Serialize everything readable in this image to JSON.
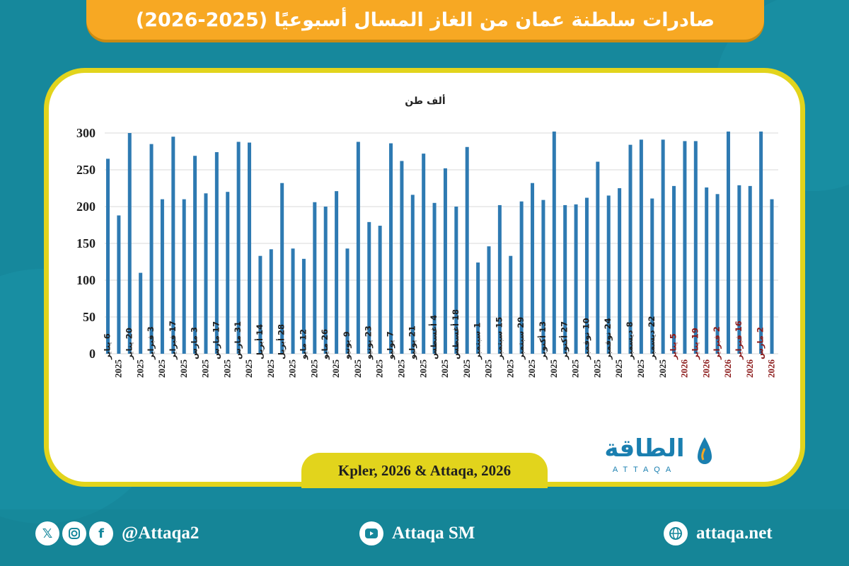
{
  "title": "صادرات سلطنة عمان من الغاز المسال أسبوعيًا (2025-2026)",
  "source": "Kpler, 2026 & Attaqa, 2026",
  "logo": {
    "arabic": "الطاقة",
    "english": "ATTAQA"
  },
  "footer": {
    "twitter_icon": "x-icon",
    "instagram_icon": "instagram-icon",
    "facebook_icon": "facebook-icon",
    "handle": "@Attaqa2",
    "youtube_icon": "youtube-icon",
    "youtube": "Attaqa SM",
    "web_icon": "globe-icon",
    "website": "attaqa.net"
  },
  "colors": {
    "background": "#16889c",
    "banner": "#f7a823",
    "frame": "#e2d41c",
    "bar": "#2e7ab2",
    "label_2025": "#1f1f1f",
    "label_2026": "#8b1a1a"
  },
  "chart_data": {
    "type": "bar",
    "ylabel": "ألف طن",
    "ylim": [
      0,
      300
    ],
    "yticks": [
      0,
      50,
      100,
      150,
      200,
      250,
      300
    ],
    "grid": true,
    "values": [
      265,
      188,
      300,
      110,
      285,
      210,
      295,
      210,
      269,
      218,
      274,
      220,
      288,
      287,
      133,
      142,
      232,
      143,
      129,
      206,
      200,
      221,
      143,
      288,
      179,
      174,
      286,
      262,
      216,
      272,
      205,
      252,
      200,
      281,
      124,
      146,
      202,
      133,
      207,
      232,
      209,
      302,
      202,
      203,
      212,
      261,
      215,
      225,
      284,
      291,
      211,
      291,
      228,
      289,
      289,
      226,
      217,
      302,
      229,
      228,
      302,
      210
    ],
    "tick_labels": [
      {
        "date": "6 يناير",
        "year": "2025"
      },
      {
        "date": "20 يناير",
        "year": "2025"
      },
      {
        "date": "3 فبراير",
        "year": "2025"
      },
      {
        "date": "17 فبراير",
        "year": "2025"
      },
      {
        "date": "3 مارس",
        "year": "2025"
      },
      {
        "date": "17 مارس",
        "year": "2025"
      },
      {
        "date": "31 مارس",
        "year": "2025"
      },
      {
        "date": "14 أبريل",
        "year": "2025"
      },
      {
        "date": "28 أبريل",
        "year": "2025"
      },
      {
        "date": "12 مايو",
        "year": "2025"
      },
      {
        "date": "26 مايو",
        "year": "2025"
      },
      {
        "date": "9 يونيو",
        "year": "2025"
      },
      {
        "date": "23 يونيو",
        "year": "2025"
      },
      {
        "date": "7 يوليو",
        "year": "2025"
      },
      {
        "date": "21 يوليو",
        "year": "2025"
      },
      {
        "date": "4 أغسطس",
        "year": "2025"
      },
      {
        "date": "18 أغسطس",
        "year": "2025"
      },
      {
        "date": "1 سبتمبر",
        "year": "2025"
      },
      {
        "date": "15 سبتمبر",
        "year": "2025"
      },
      {
        "date": "29 سبتمبر",
        "year": "2025"
      },
      {
        "date": "13 أكتوبر",
        "year": "2025"
      },
      {
        "date": "27 أكتوبر",
        "year": "2025"
      },
      {
        "date": "10 نوفمبر",
        "year": "2025"
      },
      {
        "date": "24 نوفمبر",
        "year": "2025"
      },
      {
        "date": "8 ديسمبر",
        "year": "2025"
      },
      {
        "date": "22 ديسمبر",
        "year": "2025"
      },
      {
        "date": "5 يناير",
        "year": "2026"
      },
      {
        "date": "19 يناير",
        "year": "2026"
      },
      {
        "date": "2 فبراير",
        "year": "2026"
      },
      {
        "date": "16 فبراير",
        "year": "2026"
      },
      {
        "date": "2 مارس",
        "year": "2026"
      }
    ]
  }
}
